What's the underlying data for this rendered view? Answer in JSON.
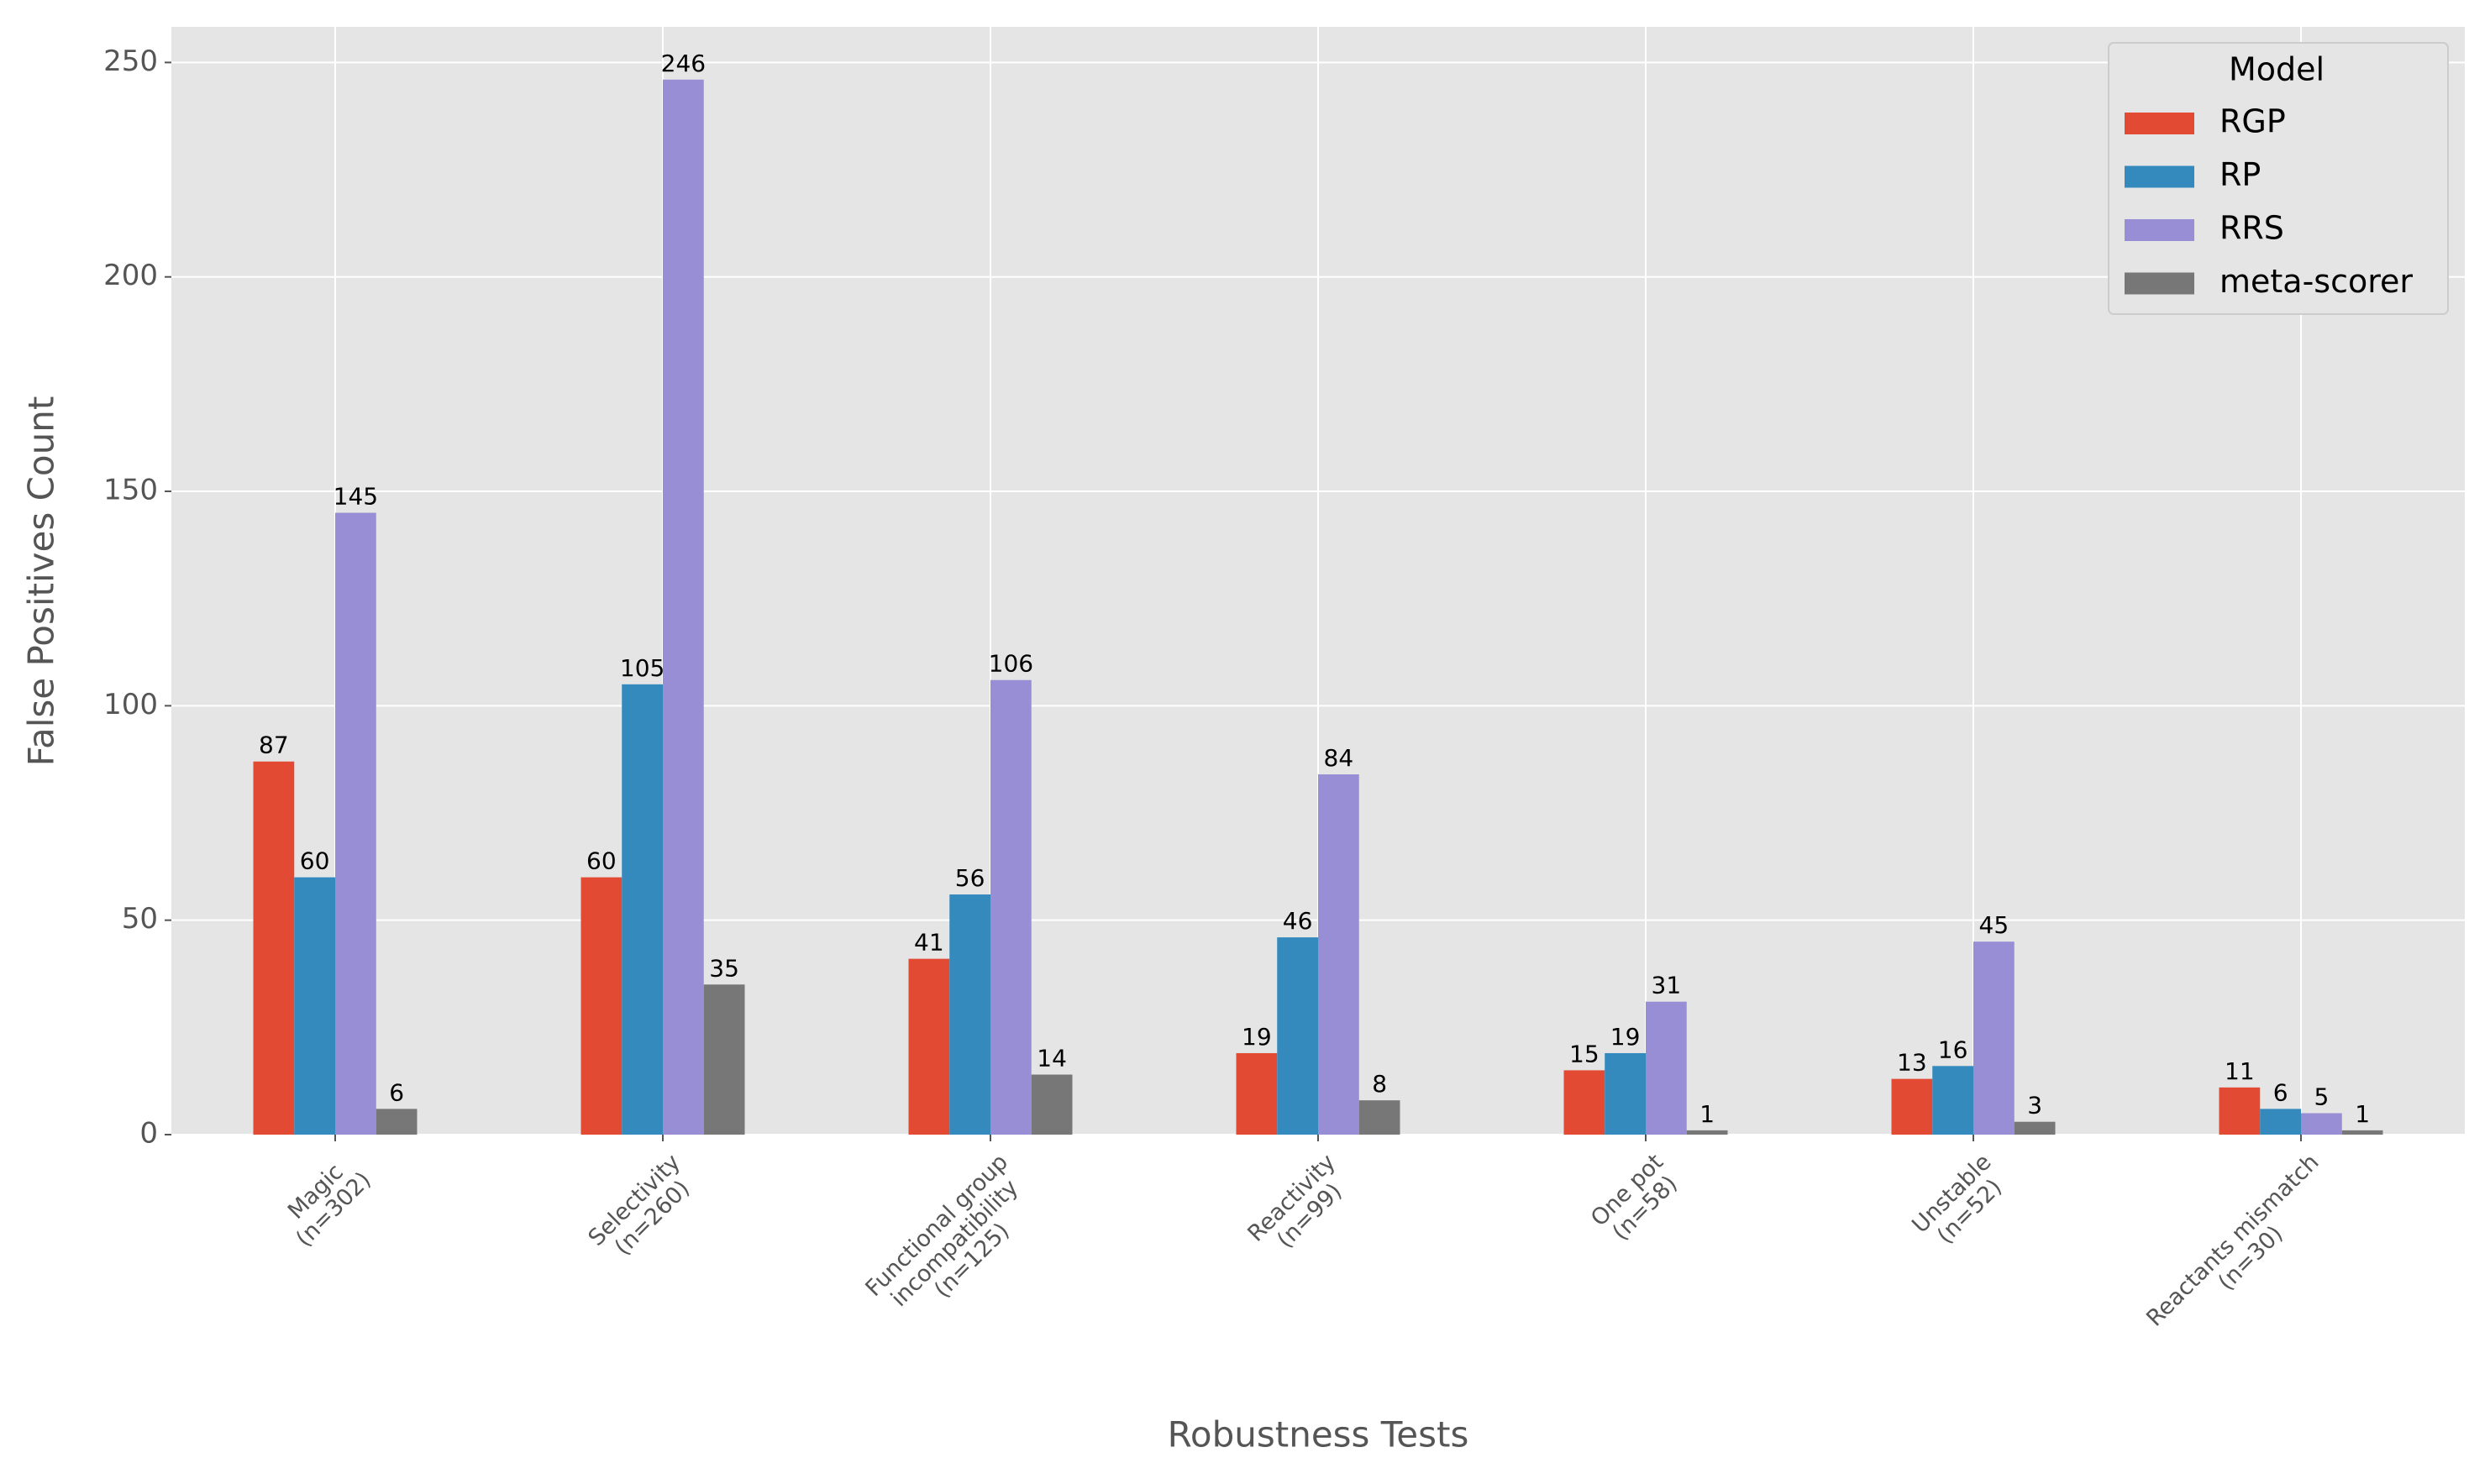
{
  "chart_data": {
    "type": "bar",
    "x_label": "Robustness Tests",
    "y_label": "False Positives Count",
    "categories": [
      "Magic\n(n=302)",
      "Selectivity\n(n=260)",
      "Functional group\nincompatibility\n(n=125)",
      "Reactivity\n(n=99)",
      "One pot\n(n=58)",
      "Unstable\n(n=52)",
      "Reactants mismatch\n(n=30)"
    ],
    "series": [
      {
        "name": "RGP",
        "color": "#E24A33",
        "values": [
          87,
          60,
          41,
          19,
          15,
          13,
          11
        ]
      },
      {
        "name": "RP",
        "color": "#348ABD",
        "values": [
          60,
          105,
          56,
          46,
          19,
          16,
          6
        ]
      },
      {
        "name": "RRS",
        "color": "#988ED5",
        "values": [
          145,
          246,
          106,
          84,
          31,
          45,
          5
        ]
      },
      {
        "name": "meta-scorer",
        "color": "#777777",
        "values": [
          6,
          35,
          14,
          8,
          1,
          3,
          1
        ]
      }
    ],
    "ylim": [
      0,
      258.3
    ],
    "yticks": [
      0,
      50,
      100,
      150,
      200,
      250
    ],
    "grid": true,
    "legend_title": "Model",
    "legend_position": "upper right"
  }
}
